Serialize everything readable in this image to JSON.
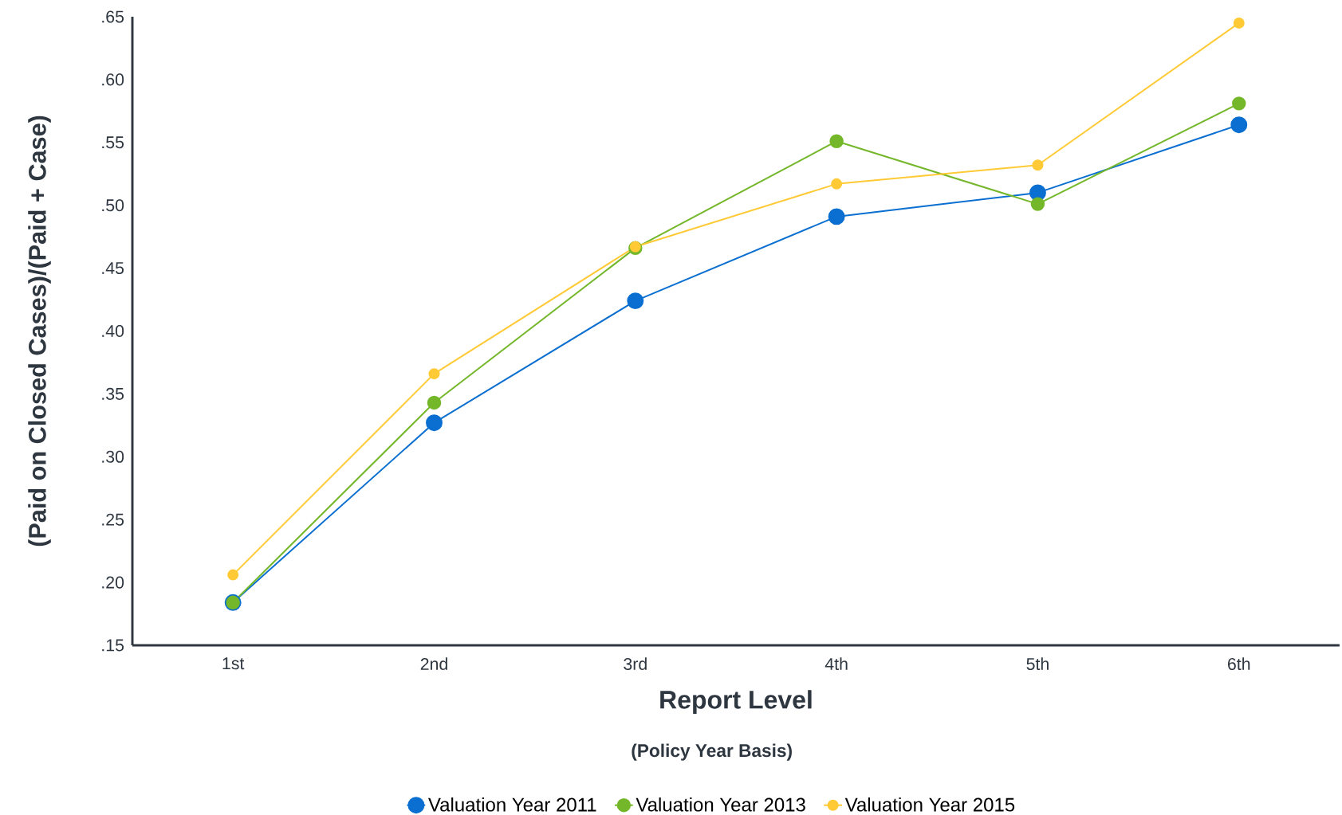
{
  "chart_data": {
    "type": "line",
    "xlabel": "Report Level",
    "ylabel": "(Paid on Closed Cases)/(Paid + Case)",
    "annotations": [
      "(Policy Year Basis)"
    ],
    "categories": [
      "1st",
      "2nd",
      "3rd",
      "4th",
      "5th",
      "6th"
    ],
    "series": [
      {
        "name": "Valuation Year 2011",
        "color": "#0a6fd0",
        "values": [
          0.184,
          0.327,
          0.424,
          0.491,
          0.51,
          0.564
        ]
      },
      {
        "name": "Valuation Year 2013",
        "color": "#74b72a",
        "values": [
          0.184,
          0.343,
          0.466,
          0.551,
          0.501,
          0.581
        ]
      },
      {
        "name": "Valuation Year 2015",
        "color": "#ffca35",
        "values": [
          0.206,
          0.366,
          0.467,
          0.517,
          0.532,
          0.645
        ]
      }
    ],
    "ylim": [
      0.15,
      0.65
    ],
    "yticks": [
      {
        "value": 0.15,
        "label": ".15"
      },
      {
        "value": 0.2,
        "label": ".20"
      },
      {
        "value": 0.25,
        "label": ".25"
      },
      {
        "value": 0.3,
        "label": ".30"
      },
      {
        "value": 0.35,
        "label": ".35"
      },
      {
        "value": 0.4,
        "label": ".40"
      },
      {
        "value": 0.45,
        "label": ".45"
      },
      {
        "value": 0.5,
        "label": ".50"
      },
      {
        "value": 0.55,
        "label": ".55"
      },
      {
        "value": 0.6,
        "label": ".60"
      },
      {
        "value": 0.65,
        "label": ".65"
      }
    ],
    "grid": false,
    "legend": "bottom",
    "marker": "circle",
    "line_style": "solid"
  }
}
